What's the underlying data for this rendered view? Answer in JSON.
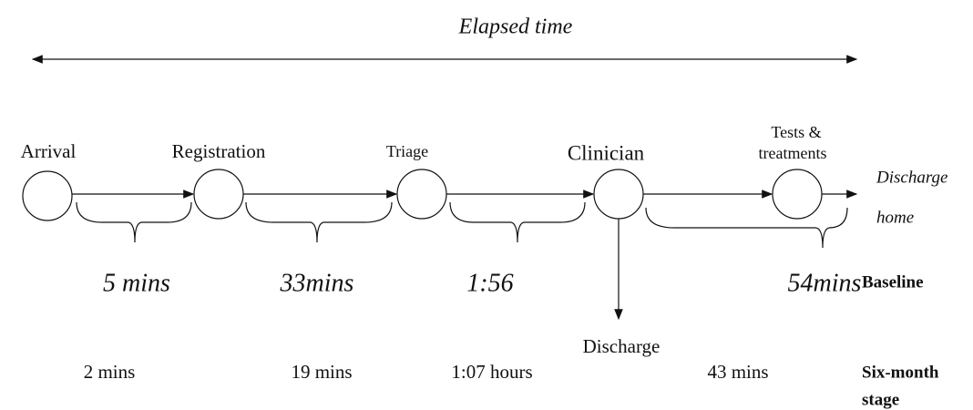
{
  "title": "Elapsed time",
  "nodes": [
    {
      "label": [
        "Arrival"
      ]
    },
    {
      "label": [
        "Registration"
      ]
    },
    {
      "label": [
        "Triage"
      ]
    },
    {
      "label": [
        "Clinician"
      ]
    },
    {
      "label": [
        "Tests  &",
        "treatments"
      ]
    }
  ],
  "discharge_home": [
    "Discharge",
    "home"
  ],
  "clinician_exit": "Discharge",
  "rows": [
    {
      "label": [
        "Baseline"
      ],
      "times": [
        "5 mins",
        "33mins",
        "1:56",
        "54mins"
      ]
    },
    {
      "label": [
        "Six-month",
        "stage"
      ],
      "times": [
        "2 mins",
        "19 mins",
        "1:07 hours",
        "43 mins"
      ]
    }
  ]
}
